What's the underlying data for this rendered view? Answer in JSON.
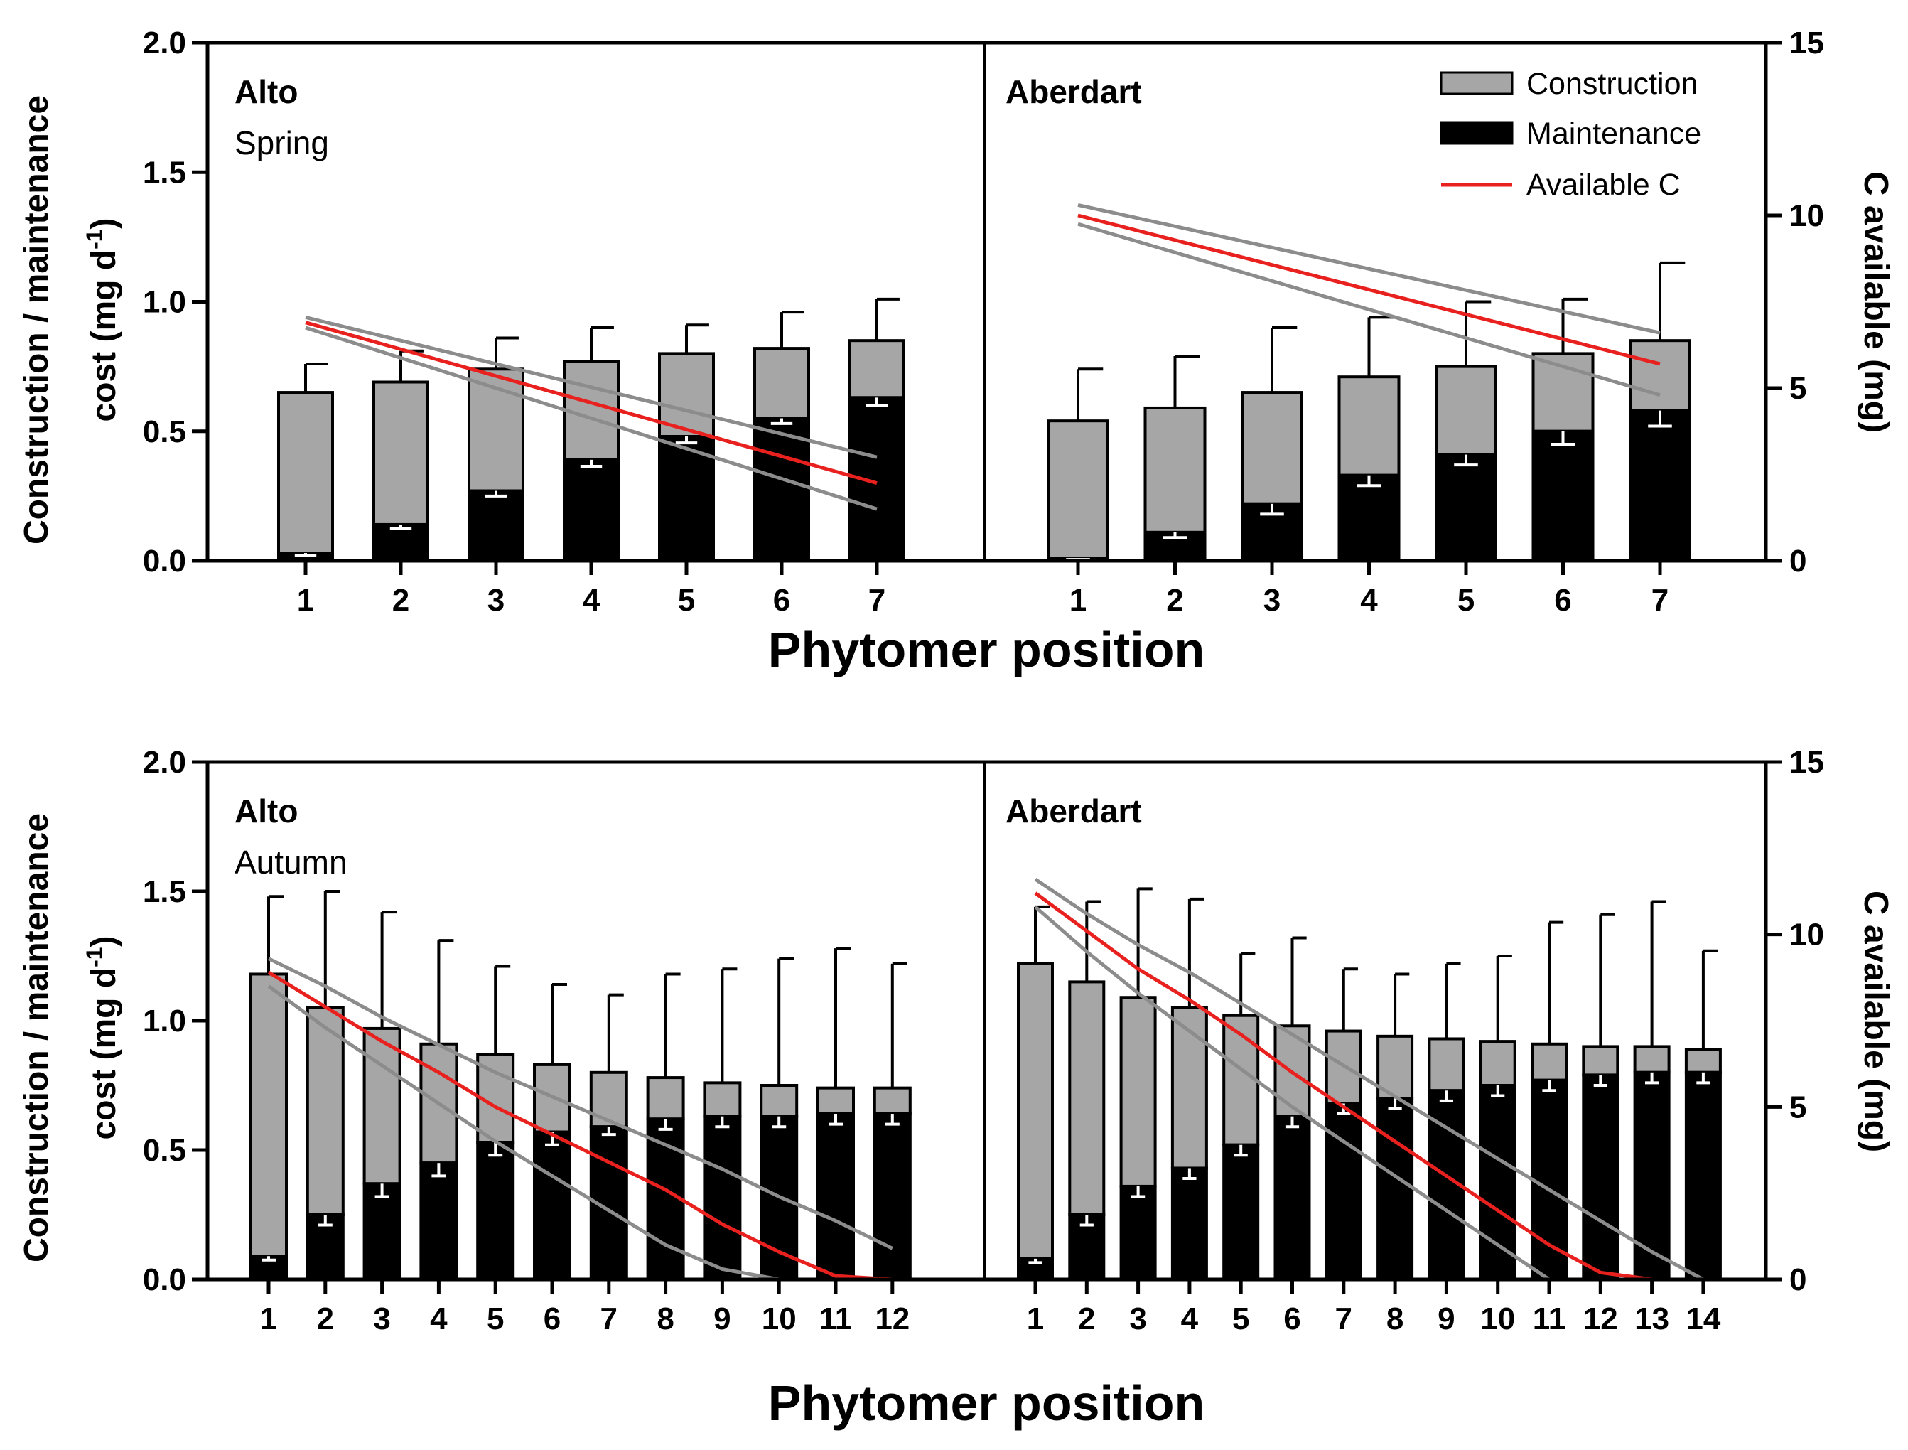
{
  "colors": {
    "construction": "#a6a6a6",
    "maintenance": "#000000",
    "available": "#e8211f",
    "available_ci": "#8c8c8c"
  },
  "legend": {
    "construction_label": "Construction",
    "maintenance_label": "Maintenance",
    "available_label": "Available C"
  },
  "chart_data": [
    {
      "type": "bar",
      "stacked": true,
      "title": "",
      "xlabel": "Phytomer position",
      "ylabel": "Construction / maintenance cost (mg d-1)",
      "ylabel2": "C available (mg)",
      "ylim": [
        0,
        2.0
      ],
      "y2lim": [
        0,
        15
      ],
      "yticks": [
        "0.0",
        "0.5",
        "1.0",
        "1.5",
        "2.0"
      ],
      "y2ticks": [
        "0",
        "5",
        "10",
        "15"
      ],
      "panels": [
        {
          "cultivar": "Alto",
          "season": "Spring",
          "categories": [
            "1",
            "2",
            "3",
            "4",
            "5",
            "6",
            "7"
          ],
          "series": [
            {
              "name": "Maintenance",
              "values": [
                0.03,
                0.14,
                0.27,
                0.39,
                0.48,
                0.55,
                0.63
              ],
              "err": [
                0.01,
                0.015,
                0.02,
                0.025,
                0.025,
                0.02,
                0.03
              ]
            },
            {
              "name": "Construction",
              "values": [
                0.62,
                0.55,
                0.47,
                0.38,
                0.32,
                0.27,
                0.22
              ],
              "err": [
                0.11,
                0.12,
                0.12,
                0.13,
                0.11,
                0.14,
                0.16
              ]
            },
            {
              "name": "Available C",
              "axis": "right",
              "x": [
                1,
                7
              ],
              "values": [
                6.9,
                2.25
              ],
              "upper": [
                7.05,
                3.0
              ],
              "lower": [
                6.75,
                1.5
              ]
            }
          ]
        },
        {
          "cultivar": "Aberdart",
          "season": "",
          "categories": [
            "1",
            "2",
            "3",
            "4",
            "5",
            "6",
            "7"
          ],
          "series": [
            {
              "name": "Maintenance",
              "values": [
                0.01,
                0.11,
                0.22,
                0.33,
                0.41,
                0.5,
                0.58
              ],
              "err": [
                0.005,
                0.02,
                0.04,
                0.04,
                0.04,
                0.05,
                0.06
              ]
            },
            {
              "name": "Construction",
              "values": [
                0.53,
                0.48,
                0.43,
                0.38,
                0.34,
                0.3,
                0.27
              ],
              "err": [
                0.2,
                0.2,
                0.25,
                0.23,
                0.25,
                0.21,
                0.3
              ]
            },
            {
              "name": "Available C",
              "axis": "right",
              "x": [
                1,
                7
              ],
              "values": [
                10.0,
                5.7
              ],
              "upper": [
                10.3,
                6.6
              ],
              "lower": [
                9.75,
                4.8
              ]
            }
          ]
        },
        {
          "cultivar": "Alto",
          "season": "Autumn",
          "categories": [
            "1",
            "2",
            "3",
            "4",
            "5",
            "6",
            "7",
            "8",
            "9",
            "10",
            "11",
            "12"
          ],
          "series": [
            {
              "name": "Maintenance",
              "values": [
                0.09,
                0.25,
                0.37,
                0.45,
                0.53,
                0.57,
                0.59,
                0.62,
                0.63,
                0.63,
                0.64,
                0.64
              ],
              "err": [
                0.015,
                0.04,
                0.05,
                0.05,
                0.05,
                0.05,
                0.03,
                0.04,
                0.04,
                0.04,
                0.04,
                0.04
              ]
            },
            {
              "name": "Construction",
              "values": [
                1.09,
                0.8,
                0.6,
                0.46,
                0.34,
                0.26,
                0.21,
                0.16,
                0.13,
                0.12,
                0.1,
                0.1
              ],
              "err": [
                0.3,
                0.45,
                0.45,
                0.4,
                0.34,
                0.31,
                0.3,
                0.4,
                0.44,
                0.49,
                0.54,
                0.48
              ]
            },
            {
              "name": "Available C",
              "axis": "right",
              "x": [
                1,
                2,
                3,
                4,
                5,
                6,
                7,
                8,
                9,
                10,
                11,
                12
              ],
              "values": [
                8.9,
                7.9,
                6.9,
                6.0,
                5.0,
                4.2,
                3.4,
                2.6,
                1.6,
                0.8,
                0.1,
                0.0
              ],
              "upper": [
                9.3,
                8.5,
                7.6,
                6.8,
                6.0,
                5.3,
                4.6,
                3.9,
                3.2,
                2.4,
                1.7,
                0.9
              ],
              "lower": [
                8.5,
                7.3,
                6.2,
                5.1,
                4.0,
                3.0,
                2.0,
                1.0,
                0.3,
                0.0,
                0.0,
                0.0
              ]
            }
          ]
        },
        {
          "cultivar": "Aberdart",
          "season": "",
          "categories": [
            "1",
            "2",
            "3",
            "4",
            "5",
            "6",
            "7",
            "8",
            "9",
            "10",
            "11",
            "12",
            "13",
            "14"
          ],
          "series": [
            {
              "name": "Maintenance",
              "values": [
                0.08,
                0.25,
                0.36,
                0.43,
                0.52,
                0.63,
                0.68,
                0.7,
                0.73,
                0.75,
                0.77,
                0.79,
                0.8,
                0.8
              ],
              "err": [
                0.015,
                0.04,
                0.04,
                0.04,
                0.04,
                0.04,
                0.04,
                0.04,
                0.04,
                0.04,
                0.04,
                0.04,
                0.04,
                0.04
              ]
            },
            {
              "name": "Construction",
              "values": [
                1.14,
                0.9,
                0.73,
                0.62,
                0.5,
                0.35,
                0.28,
                0.24,
                0.2,
                0.17,
                0.14,
                0.11,
                0.1,
                0.09
              ],
              "err": [
                0.22,
                0.31,
                0.42,
                0.42,
                0.24,
                0.34,
                0.24,
                0.24,
                0.29,
                0.33,
                0.47,
                0.51,
                0.56,
                0.38
              ]
            },
            {
              "name": "Available C",
              "axis": "right",
              "x": [
                1,
                2,
                3,
                4,
                5,
                6,
                7,
                8,
                9,
                10,
                11,
                12,
                13,
                14
              ],
              "values": [
                11.2,
                10.1,
                9.0,
                8.1,
                7.1,
                6.0,
                5.0,
                4.0,
                3.0,
                2.0,
                1.0,
                0.2,
                0.0,
                0.0
              ],
              "upper": [
                11.6,
                10.6,
                9.7,
                8.9,
                8.0,
                7.1,
                6.2,
                5.3,
                4.4,
                3.5,
                2.6,
                1.7,
                0.8,
                0.0
              ],
              "lower": [
                10.8,
                9.5,
                8.3,
                7.2,
                6.1,
                5.0,
                4.0,
                3.0,
                2.0,
                1.0,
                0.0,
                0.0,
                0.0,
                0.0
              ]
            }
          ]
        }
      ]
    }
  ]
}
